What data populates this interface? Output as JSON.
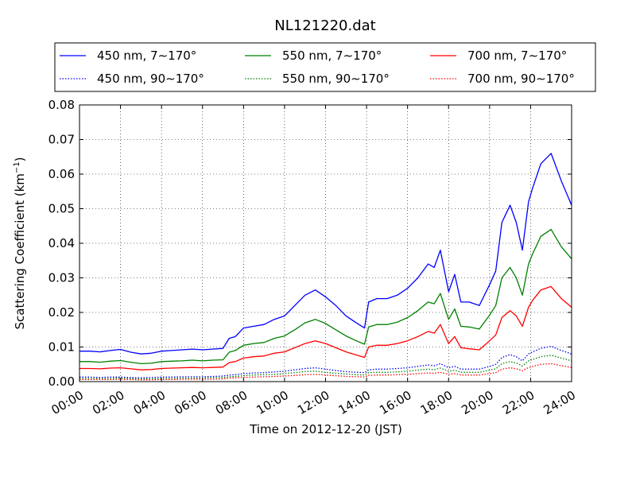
{
  "chart_data": {
    "type": "line",
    "title": "NL121220.dat",
    "xlabel": "Time on 2012-12-20 (JST)",
    "ylabel_main": "Scattering Coefficient (km",
    "ylabel_sup": "−1",
    "ylabel_end": ")",
    "xlim": [
      0,
      24
    ],
    "ylim": [
      0,
      0.08
    ],
    "grid": true,
    "legend_position": "top",
    "x_ticks": [
      {
        "value": 0,
        "label": "00:00"
      },
      {
        "value": 2,
        "label": "02:00"
      },
      {
        "value": 4,
        "label": "04:00"
      },
      {
        "value": 6,
        "label": "06:00"
      },
      {
        "value": 8,
        "label": "08:00"
      },
      {
        "value": 10,
        "label": "10:00"
      },
      {
        "value": 12,
        "label": "12:00"
      },
      {
        "value": 14,
        "label": "14:00"
      },
      {
        "value": 16,
        "label": "16:00"
      },
      {
        "value": 18,
        "label": "18:00"
      },
      {
        "value": 20,
        "label": "20:00"
      },
      {
        "value": 22,
        "label": "22:00"
      },
      {
        "value": 24,
        "label": "24:00"
      }
    ],
    "y_ticks": [
      {
        "value": 0.0,
        "label": "0.00"
      },
      {
        "value": 0.01,
        "label": "0.01"
      },
      {
        "value": 0.02,
        "label": "0.02"
      },
      {
        "value": 0.03,
        "label": "0.03"
      },
      {
        "value": 0.04,
        "label": "0.04"
      },
      {
        "value": 0.05,
        "label": "0.05"
      },
      {
        "value": 0.06,
        "label": "0.06"
      },
      {
        "value": 0.07,
        "label": "0.07"
      },
      {
        "value": 0.08,
        "label": "0.08"
      }
    ],
    "x": [
      0,
      0.5,
      1,
      1.5,
      2,
      2.5,
      3,
      3.5,
      4,
      4.5,
      5,
      5.5,
      6,
      6.5,
      7,
      7.3,
      7.6,
      8,
      8.5,
      9,
      9.5,
      10,
      10.5,
      11,
      11.5,
      12,
      12.5,
      13,
      13.5,
      13.9,
      14.1,
      14.5,
      15,
      15.5,
      16,
      16.5,
      17,
      17.3,
      17.6,
      18,
      18.3,
      18.6,
      19,
      19.5,
      20,
      20.3,
      20.6,
      21,
      21.3,
      21.6,
      21.9,
      22.1,
      22.5,
      23,
      23.5,
      24
    ],
    "series": [
      {
        "name": "450 nm, 7∼170°",
        "color": "#0000ff",
        "style": "solid",
        "values": [
          0.0088,
          0.0088,
          0.0086,
          0.009,
          0.0093,
          0.0085,
          0.008,
          0.0082,
          0.0088,
          0.009,
          0.0092,
          0.0094,
          0.0092,
          0.0094,
          0.0096,
          0.0125,
          0.013,
          0.0155,
          0.016,
          0.0165,
          0.018,
          0.019,
          0.022,
          0.025,
          0.0265,
          0.0245,
          0.022,
          0.019,
          0.017,
          0.0155,
          0.023,
          0.024,
          0.024,
          0.025,
          0.027,
          0.03,
          0.034,
          0.033,
          0.038,
          0.026,
          0.031,
          0.023,
          0.023,
          0.022,
          0.028,
          0.032,
          0.046,
          0.051,
          0.046,
          0.038,
          0.052,
          0.056,
          0.063,
          0.066,
          0.058,
          0.051
        ]
      },
      {
        "name": "450 nm, 90∼170°",
        "color": "#0000ff",
        "style": "dotted",
        "values": [
          0.0013,
          0.0013,
          0.0012,
          0.0013,
          0.0013,
          0.0012,
          0.0011,
          0.0012,
          0.0013,
          0.0013,
          0.0014,
          0.0014,
          0.0014,
          0.0015,
          0.0016,
          0.0019,
          0.002,
          0.0023,
          0.0025,
          0.0026,
          0.0028,
          0.003,
          0.0034,
          0.0038,
          0.004,
          0.0036,
          0.0032,
          0.0029,
          0.0027,
          0.0026,
          0.0034,
          0.0036,
          0.0036,
          0.0038,
          0.004,
          0.0044,
          0.0048,
          0.0046,
          0.0052,
          0.004,
          0.0044,
          0.0036,
          0.0036,
          0.0036,
          0.0044,
          0.005,
          0.007,
          0.0078,
          0.0072,
          0.006,
          0.008,
          0.0086,
          0.0096,
          0.0102,
          0.009,
          0.008
        ]
      },
      {
        "name": "550 nm, 7∼170°",
        "color": "#008000",
        "style": "solid",
        "values": [
          0.0058,
          0.0058,
          0.0056,
          0.0059,
          0.0061,
          0.0056,
          0.0052,
          0.0053,
          0.0058,
          0.0059,
          0.006,
          0.0062,
          0.006,
          0.0062,
          0.0063,
          0.0085,
          0.009,
          0.0105,
          0.011,
          0.0113,
          0.0125,
          0.0132,
          0.015,
          0.017,
          0.018,
          0.0168,
          0.015,
          0.0132,
          0.0118,
          0.0108,
          0.0158,
          0.0165,
          0.0165,
          0.0172,
          0.0185,
          0.0205,
          0.023,
          0.0225,
          0.0255,
          0.018,
          0.021,
          0.016,
          0.0158,
          0.0152,
          0.0192,
          0.022,
          0.03,
          0.033,
          0.03,
          0.025,
          0.034,
          0.037,
          0.042,
          0.044,
          0.039,
          0.0355
        ]
      },
      {
        "name": "550 nm, 90∼170°",
        "color": "#008000",
        "style": "dotted",
        "values": [
          0.0009,
          0.0009,
          0.0009,
          0.0009,
          0.001,
          0.0009,
          0.0008,
          0.0008,
          0.0009,
          0.0009,
          0.001,
          0.001,
          0.001,
          0.0011,
          0.0012,
          0.0014,
          0.0015,
          0.0017,
          0.0019,
          0.002,
          0.0021,
          0.0023,
          0.0026,
          0.0029,
          0.003,
          0.0027,
          0.0024,
          0.0022,
          0.002,
          0.0019,
          0.0026,
          0.0027,
          0.0027,
          0.0028,
          0.003,
          0.0033,
          0.0036,
          0.0034,
          0.0039,
          0.003,
          0.0033,
          0.0027,
          0.0027,
          0.0027,
          0.0033,
          0.0037,
          0.0052,
          0.0058,
          0.0054,
          0.0045,
          0.006,
          0.0064,
          0.0072,
          0.0076,
          0.0068,
          0.006
        ]
      },
      {
        "name": "700 nm, 7∼170°",
        "color": "#ff0000",
        "style": "solid",
        "values": [
          0.0038,
          0.0038,
          0.0037,
          0.0039,
          0.004,
          0.0037,
          0.0034,
          0.0035,
          0.0038,
          0.0039,
          0.004,
          0.0041,
          0.004,
          0.0041,
          0.0042,
          0.0055,
          0.0058,
          0.0068,
          0.0072,
          0.0074,
          0.0082,
          0.0086,
          0.0098,
          0.011,
          0.0118,
          0.011,
          0.0098,
          0.0086,
          0.0077,
          0.007,
          0.01,
          0.0105,
          0.0105,
          0.011,
          0.0118,
          0.013,
          0.0145,
          0.014,
          0.0165,
          0.011,
          0.013,
          0.0098,
          0.0095,
          0.0092,
          0.0118,
          0.0135,
          0.0185,
          0.0205,
          0.019,
          0.016,
          0.0215,
          0.0235,
          0.0265,
          0.0275,
          0.024,
          0.0215
        ]
      },
      {
        "name": "700 nm, 90∼170°",
        "color": "#ff0000",
        "style": "dotted",
        "values": [
          0.0006,
          0.0006,
          0.0006,
          0.0006,
          0.0007,
          0.0006,
          0.0005,
          0.0005,
          0.0006,
          0.0006,
          0.0007,
          0.0007,
          0.0007,
          0.0007,
          0.0008,
          0.001,
          0.0011,
          0.0012,
          0.0013,
          0.0014,
          0.0015,
          0.0016,
          0.0018,
          0.002,
          0.0021,
          0.0019,
          0.0017,
          0.0015,
          0.0014,
          0.0013,
          0.0018,
          0.0019,
          0.0019,
          0.002,
          0.0021,
          0.0023,
          0.0025,
          0.0024,
          0.0027,
          0.0021,
          0.0023,
          0.0019,
          0.0019,
          0.0019,
          0.0023,
          0.0026,
          0.0036,
          0.004,
          0.0037,
          0.0031,
          0.0041,
          0.0044,
          0.005,
          0.0052,
          0.0046,
          0.0041
        ]
      }
    ]
  }
}
